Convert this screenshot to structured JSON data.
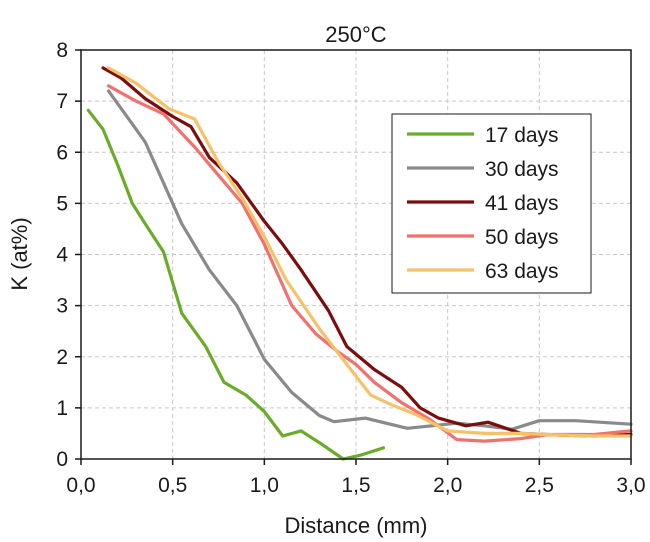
{
  "chart_data": {
    "type": "line",
    "title": "250°C",
    "xlabel": "Distance (mm)",
    "ylabel": "K (at%)",
    "xlim": [
      0,
      3
    ],
    "ylim": [
      0,
      8
    ],
    "x_ticks": [
      "0,0",
      "0,5",
      "1,0",
      "1,5",
      "2,0",
      "2,5",
      "3,0"
    ],
    "y_ticks": [
      "0",
      "1",
      "2",
      "3",
      "4",
      "5",
      "6",
      "7",
      "8"
    ],
    "grid": true,
    "legend_position": "right",
    "series": [
      {
        "name": "17 days",
        "color": "#6aac2a",
        "points": [
          [
            0.04,
            6.82
          ],
          [
            0.12,
            6.45
          ],
          [
            0.2,
            5.75
          ],
          [
            0.28,
            5.0
          ],
          [
            0.35,
            4.6
          ],
          [
            0.45,
            4.05
          ],
          [
            0.55,
            2.85
          ],
          [
            0.68,
            2.2
          ],
          [
            0.78,
            1.5
          ],
          [
            0.9,
            1.25
          ],
          [
            1.0,
            0.93
          ],
          [
            1.1,
            0.45
          ],
          [
            1.2,
            0.55
          ],
          [
            1.3,
            0.32
          ],
          [
            1.43,
            0.0
          ],
          [
            1.53,
            0.08
          ],
          [
            1.65,
            0.22
          ]
        ]
      },
      {
        "name": "30 days",
        "color": "#8a8a8a",
        "points": [
          [
            0.15,
            7.2
          ],
          [
            0.35,
            6.2
          ],
          [
            0.55,
            4.6
          ],
          [
            0.7,
            3.7
          ],
          [
            0.85,
            3.0
          ],
          [
            1.0,
            1.95
          ],
          [
            1.15,
            1.3
          ],
          [
            1.3,
            0.85
          ],
          [
            1.38,
            0.73
          ],
          [
            1.55,
            0.8
          ],
          [
            1.78,
            0.6
          ],
          [
            2.05,
            0.7
          ],
          [
            2.2,
            0.65
          ],
          [
            2.35,
            0.58
          ],
          [
            2.5,
            0.75
          ],
          [
            2.7,
            0.75
          ],
          [
            3.0,
            0.68
          ]
        ]
      },
      {
        "name": "41 days",
        "color": "#7a0d0d",
        "points": [
          [
            0.12,
            7.65
          ],
          [
            0.22,
            7.45
          ],
          [
            0.35,
            7.05
          ],
          [
            0.5,
            6.7
          ],
          [
            0.6,
            6.5
          ],
          [
            0.7,
            5.9
          ],
          [
            0.85,
            5.4
          ],
          [
            1.0,
            4.65
          ],
          [
            1.1,
            4.2
          ],
          [
            1.2,
            3.7
          ],
          [
            1.35,
            2.9
          ],
          [
            1.45,
            2.2
          ],
          [
            1.6,
            1.75
          ],
          [
            1.75,
            1.4
          ],
          [
            1.85,
            1.0
          ],
          [
            1.95,
            0.8
          ],
          [
            2.1,
            0.65
          ],
          [
            2.22,
            0.72
          ],
          [
            2.4,
            0.5
          ],
          [
            2.6,
            0.47
          ],
          [
            2.8,
            0.45
          ],
          [
            3.0,
            0.48
          ]
        ]
      },
      {
        "name": "50 days",
        "color": "#f2706d",
        "points": [
          [
            0.15,
            7.3
          ],
          [
            0.3,
            7.0
          ],
          [
            0.45,
            6.75
          ],
          [
            0.62,
            6.1
          ],
          [
            0.75,
            5.55
          ],
          [
            0.88,
            5.0
          ],
          [
            1.0,
            4.2
          ],
          [
            1.15,
            3.0
          ],
          [
            1.28,
            2.45
          ],
          [
            1.4,
            2.1
          ],
          [
            1.5,
            1.85
          ],
          [
            1.6,
            1.5
          ],
          [
            1.75,
            1.1
          ],
          [
            1.9,
            0.78
          ],
          [
            2.05,
            0.38
          ],
          [
            2.2,
            0.35
          ],
          [
            2.4,
            0.4
          ],
          [
            2.55,
            0.48
          ],
          [
            2.8,
            0.48
          ],
          [
            3.0,
            0.55
          ]
        ]
      },
      {
        "name": "63 days",
        "color": "#f5c26b",
        "points": [
          [
            0.15,
            7.65
          ],
          [
            0.3,
            7.35
          ],
          [
            0.48,
            6.85
          ],
          [
            0.62,
            6.65
          ],
          [
            0.75,
            5.8
          ],
          [
            0.88,
            5.1
          ],
          [
            1.0,
            4.35
          ],
          [
            1.12,
            3.5
          ],
          [
            1.3,
            2.55
          ],
          [
            1.45,
            1.85
          ],
          [
            1.58,
            1.25
          ],
          [
            1.7,
            1.05
          ],
          [
            1.82,
            0.88
          ],
          [
            2.0,
            0.55
          ],
          [
            2.2,
            0.5
          ],
          [
            2.4,
            0.5
          ],
          [
            2.6,
            0.47
          ],
          [
            2.8,
            0.45
          ],
          [
            3.0,
            0.45
          ]
        ]
      }
    ]
  }
}
